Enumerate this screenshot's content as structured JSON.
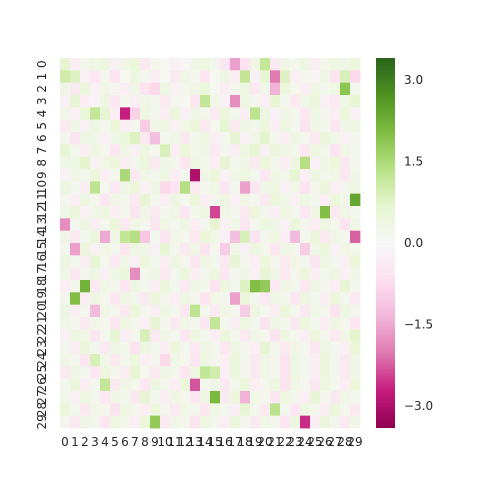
{
  "chart_data": {
    "type": "heatmap",
    "title": "",
    "xlabel": "",
    "ylabel": "",
    "colormap": "PiYG",
    "colormap_stops": [
      "#8e0152",
      "#c51b7d",
      "#de77ae",
      "#f1b6da",
      "#fde0ef",
      "#f7f7f7",
      "#e6f5d0",
      "#b8e186",
      "#7fbc41",
      "#4d9221",
      "#276419"
    ],
    "vmin": -3.4,
    "vmax": 3.4,
    "x_categories": [
      "0",
      "1",
      "2",
      "3",
      "4",
      "5",
      "6",
      "7",
      "8",
      "9",
      "10",
      "11",
      "12",
      "13",
      "14",
      "15",
      "16",
      "17",
      "18",
      "19",
      "20",
      "21",
      "22",
      "23",
      "24",
      "25",
      "26",
      "27",
      "28",
      "29"
    ],
    "y_categories": [
      "0",
      "1",
      "2",
      "3",
      "4",
      "5",
      "6",
      "7",
      "8",
      "9",
      "10",
      "11",
      "12",
      "13",
      "14",
      "15",
      "16",
      "17",
      "18",
      "19",
      "20",
      "21",
      "22",
      "23",
      "24",
      "25",
      "26",
      "27",
      "28",
      "29"
    ],
    "colorbar_ticks": [
      {
        "value": 3.0,
        "label": "3.0"
      },
      {
        "value": 1.5,
        "label": "1.5"
      },
      {
        "value": 0.0,
        "label": "0.0"
      },
      {
        "value": -1.5,
        "label": "−1.5"
      },
      {
        "value": -3.0,
        "label": "−3.0"
      }
    ],
    "values": [
      [
        0.6,
        -0.3,
        0.2,
        0.3,
        0.4,
        -0.2,
        0.3,
        0.5,
        -0.4,
        0.2,
        0.1,
        -0.2,
        -0.1,
        0.3,
        0.4,
        0.2,
        -0.5,
        -1.6,
        -0.6,
        0.3,
        1.2,
        -0.4,
        0.3,
        0.2,
        0.4,
        -0.3,
        0.2,
        0.4,
        0.3,
        0.5
      ],
      [
        1.0,
        0.8,
        -0.2,
        -0.5,
        0.2,
        -0.6,
        0.1,
        0.4,
        0.2,
        -0.3,
        0.1,
        -0.4,
        0.3,
        0.2,
        -0.5,
        0.1,
        0.4,
        -0.3,
        1.2,
        -0.2,
        0.6,
        -2.0,
        0.8,
        -0.3,
        0.2,
        -0.1,
        0.3,
        -0.6,
        0.9,
        -0.8
      ],
      [
        0.3,
        -0.4,
        0.5,
        -0.2,
        0.3,
        0.2,
        -0.3,
        0.3,
        -0.6,
        -0.8,
        0.4,
        -0.2,
        0.2,
        0.3,
        0.5,
        0.1,
        -0.3,
        0.2,
        0.4,
        -0.4,
        0.3,
        -1.4,
        0.5,
        0.2,
        -0.3,
        0.4,
        0.2,
        0.3,
        1.9,
        0.2
      ],
      [
        -0.2,
        0.6,
        -0.3,
        -0.1,
        0.4,
        -0.5,
        0.2,
        -0.3,
        0.3,
        0.2,
        -0.4,
        0.2,
        0.1,
        -0.5,
        1.2,
        0.3,
        -0.2,
        -1.8,
        0.4,
        0.2,
        -0.3,
        0.6,
        0.2,
        -0.4,
        0.3,
        0.5,
        -0.2,
        -0.4,
        0.3,
        0.6
      ],
      [
        0.3,
        -0.2,
        0.5,
        1.2,
        0.6,
        -0.3,
        -2.7,
        -0.9,
        0.4,
        0.2,
        -0.3,
        0.5,
        -0.2,
        0.3,
        0.2,
        -0.4,
        0.5,
        0.2,
        -0.3,
        1.3,
        0.4,
        -0.2,
        0.3,
        0.2,
        -0.5,
        0.4,
        0.2,
        -0.3,
        0.5,
        -0.2
      ],
      [
        -0.4,
        0.3,
        -0.2,
        0.4,
        0.2,
        0.5,
        -0.3,
        0.2,
        -1.0,
        0.3,
        0.4,
        -0.2,
        0.3,
        0.5,
        -0.4,
        0.2,
        0.6,
        -0.4,
        0.3,
        0.2,
        0.5,
        -0.3,
        0.4,
        0.2,
        -0.6,
        0.3,
        0.2,
        -0.5,
        0.3,
        0.4
      ],
      [
        0.2,
        -0.6,
        0.4,
        0.3,
        -0.2,
        0.3,
        0.5,
        0.8,
        -0.4,
        -1.2,
        0.2,
        0.3,
        -0.4,
        0.2,
        0.4,
        -0.3,
        0.2,
        0.6,
        -0.2,
        0.3,
        0.7,
        0.2,
        -0.3,
        0.4,
        0.2,
        -0.4,
        0.5,
        0.3,
        -0.2,
        0.2
      ],
      [
        0.6,
        0.2,
        -0.3,
        0.4,
        0.2,
        -0.5,
        0.3,
        -0.2,
        0.4,
        0.2,
        0.9,
        -0.3,
        0.5,
        0.2,
        0.3,
        -0.4,
        0.2,
        -0.3,
        0.4,
        0.6,
        -0.2,
        0.5,
        0.3,
        0.2,
        -0.5,
        0.4,
        0.2,
        -0.6,
        0.3,
        0.2
      ],
      [
        0.3,
        0.4,
        0.7,
        -0.2,
        0.3,
        0.5,
        -0.3,
        0.2,
        0.5,
        -0.4,
        0.3,
        0.2,
        -0.5,
        0.4,
        0.2,
        -0.3,
        0.6,
        0.2,
        0.3,
        -0.4,
        0.5,
        0.2,
        -0.3,
        0.4,
        1.4,
        -0.2,
        0.3,
        0.5,
        -0.4,
        0.2
      ],
      [
        -0.2,
        0.3,
        0.2,
        0.5,
        -0.3,
        0.2,
        1.5,
        -0.4,
        0.3,
        0.2,
        0.4,
        -0.3,
        0.2,
        -3.0,
        0.3,
        0.5,
        -0.2,
        0.3,
        0.4,
        0.2,
        -0.5,
        0.3,
        0.2,
        0.6,
        -0.3,
        0.4,
        0.2,
        0.3,
        -0.5,
        0.3
      ],
      [
        0.4,
        0.2,
        -0.3,
        1.3,
        0.2,
        -0.4,
        0.3,
        0.5,
        -0.2,
        0.3,
        -0.8,
        -0.6,
        1.4,
        -0.4,
        0.2,
        0.3,
        -0.5,
        0.2,
        -1.6,
        -0.5,
        0.3,
        0.4,
        -0.2,
        0.3,
        -0.6,
        0.2,
        0.5,
        -0.3,
        0.2,
        0.4
      ],
      [
        0.2,
        -0.3,
        0.4,
        0.2,
        -0.5,
        0.3,
        0.2,
        -0.4,
        0.6,
        0.2,
        -0.3,
        0.4,
        0.2,
        0.5,
        -0.3,
        0.2,
        0.4,
        -0.2,
        0.3,
        0.2,
        -0.4,
        0.5,
        0.3,
        -0.2,
        0.4,
        0.2,
        -0.3,
        0.5,
        0.2,
        2.4
      ],
      [
        0.3,
        0.5,
        -0.2,
        0.3,
        0.4,
        -0.3,
        0.2,
        -0.6,
        0.3,
        -0.4,
        0.2,
        0.3,
        -0.5,
        0.2,
        0.4,
        -2.4,
        0.3,
        0.2,
        -0.4,
        0.5,
        0.2,
        -0.3,
        0.4,
        0.2,
        -0.5,
        0.3,
        2.0,
        -0.4,
        0.3,
        0.2
      ],
      [
        -1.8,
        0.2,
        0.4,
        -0.3,
        0.2,
        0.5,
        -0.4,
        0.3,
        0.2,
        -0.5,
        0.3,
        0.2,
        0.4,
        -0.3,
        0.2,
        0.6,
        -0.2,
        0.3,
        -0.5,
        0.2,
        0.4,
        0.3,
        -0.2,
        0.5,
        0.2,
        -0.3,
        0.4,
        0.2,
        -0.6,
        0.3
      ],
      [
        0.3,
        -0.4,
        0.2,
        0.5,
        -1.5,
        0.3,
        1.2,
        1.4,
        -1.1,
        0.2,
        -0.6,
        0.3,
        0.2,
        -0.4,
        0.5,
        0.3,
        -0.2,
        -1.2,
        0.9,
        -0.6,
        0.2,
        0.4,
        -0.3,
        -1.3,
        0.2,
        0.5,
        -0.4,
        0.3,
        0.2,
        -2.2
      ],
      [
        0.2,
        -1.6,
        0.5,
        -0.2,
        0.3,
        0.2,
        -0.5,
        0.4,
        0.3,
        -0.2,
        0.6,
        0.2,
        -0.4,
        0.3,
        -0.6,
        0.2,
        -1.0,
        0.3,
        -0.2,
        0.4,
        0.2,
        -0.5,
        0.3,
        0.2,
        -1.0,
        0.3,
        0.5,
        -0.2,
        0.3,
        0.2
      ],
      [
        0.4,
        0.2,
        -0.3,
        0.6,
        0.2,
        -0.4,
        0.3,
        -0.2,
        0.5,
        0.2,
        -0.3,
        0.4,
        0.2,
        -0.5,
        0.3,
        0.2,
        -0.4,
        0.6,
        0.2,
        -0.3,
        0.5,
        0.2,
        -0.4,
        0.3,
        0.2,
        -0.6,
        0.4,
        0.2,
        -0.3,
        0.5
      ],
      [
        0.3,
        -0.5,
        0.2,
        0.4,
        -0.2,
        0.3,
        0.5,
        -1.8,
        0.2,
        0.3,
        -0.4,
        0.2,
        0.5,
        -0.3,
        0.2,
        0.4,
        -0.5,
        0.2,
        0.3,
        -0.2,
        0.6,
        0.3,
        -0.4,
        0.2,
        0.5,
        -0.3,
        0.2,
        0.4,
        -0.2,
        0.3
      ],
      [
        -0.3,
        0.2,
        2.2,
        -0.4,
        0.3,
        0.2,
        -0.5,
        0.4,
        0.2,
        -0.3,
        0.5,
        0.2,
        -0.4,
        0.3,
        0.2,
        -0.6,
        0.4,
        0.2,
        0.8,
        2.0,
        1.8,
        -0.4,
        0.3,
        0.2,
        -0.5,
        0.4,
        0.2,
        -0.3,
        0.6,
        0.2
      ],
      [
        0.2,
        2.0,
        -0.3,
        0.4,
        0.2,
        -0.5,
        0.3,
        0.2,
        -0.4,
        0.5,
        0.2,
        -0.3,
        0.4,
        0.2,
        -0.6,
        0.3,
        0.2,
        -1.6,
        0.5,
        0.2,
        -0.4,
        0.3,
        0.2,
        -0.5,
        0.4,
        0.2,
        -0.3,
        0.5,
        0.2,
        -0.4
      ],
      [
        0.4,
        -0.3,
        0.2,
        -1.3,
        0.3,
        0.2,
        -0.4,
        0.5,
        0.2,
        -0.3,
        0.4,
        0.2,
        -0.5,
        1.3,
        0.2,
        -0.4,
        0.3,
        0.2,
        -1.0,
        0.4,
        0.2,
        -0.3,
        0.5,
        0.2,
        -0.4,
        0.3,
        0.2,
        -0.6,
        0.4,
        0.2
      ],
      [
        0.3,
        0.2,
        -0.4,
        0.3,
        0.2,
        -0.5,
        0.4,
        0.2,
        -0.3,
        0.6,
        0.2,
        -0.4,
        0.3,
        0.2,
        -0.5,
        1.2,
        0.2,
        -0.3,
        0.4,
        0.2,
        -0.6,
        0.3,
        0.2,
        -0.4,
        0.5,
        0.2,
        -0.3,
        0.4,
        0.2,
        -0.5
      ],
      [
        -0.2,
        0.4,
        0.3,
        -0.5,
        0.2,
        0.6,
        -0.3,
        0.2,
        0.9,
        -0.4,
        0.3,
        0.2,
        -0.5,
        0.4,
        0.2,
        -0.3,
        0.5,
        0.2,
        -0.4,
        0.3,
        0.2,
        -0.6,
        0.4,
        0.2,
        -0.3,
        0.5,
        0.2,
        -0.4,
        0.3,
        0.7
      ],
      [
        0.2,
        -0.3,
        0.5,
        0.2,
        -0.4,
        0.3,
        0.2,
        -0.6,
        0.4,
        0.2,
        -0.3,
        0.5,
        0.2,
        -0.4,
        0.3,
        0.2,
        -0.5,
        0.4,
        0.2,
        -0.3,
        0.6,
        0.2,
        -0.4,
        0.3,
        0.2,
        -0.5,
        0.4,
        0.2,
        -0.3,
        0.5
      ],
      [
        0.3,
        0.2,
        -0.5,
        0.9,
        0.3,
        -0.4,
        0.2,
        0.5,
        -0.3,
        0.2,
        -0.8,
        0.3,
        0.2,
        -0.5,
        0.4,
        0.2,
        -0.3,
        0.5,
        0.2,
        -0.4,
        0.3,
        0.2,
        -0.6,
        0.4,
        0.2,
        -0.3,
        0.5,
        0.2,
        -0.4,
        0.3
      ],
      [
        -0.4,
        0.3,
        0.2,
        -0.5,
        0.4,
        0.2,
        -0.3,
        0.6,
        0.2,
        -0.4,
        0.3,
        0.2,
        -0.5,
        0.4,
        1.2,
        1.0,
        -0.3,
        0.5,
        0.2,
        -0.4,
        0.3,
        0.2,
        -0.6,
        0.4,
        0.2,
        -0.3,
        0.5,
        0.2,
        -0.4,
        0.3
      ],
      [
        0.2,
        0.5,
        -0.3,
        0.2,
        1.2,
        -0.4,
        0.3,
        0.2,
        -0.5,
        0.4,
        0.2,
        -0.3,
        0.5,
        -2.3,
        0.2,
        0.3,
        -0.4,
        0.2,
        0.5,
        -0.3,
        0.2,
        0.4,
        -0.6,
        0.3,
        0.2,
        -0.5,
        0.4,
        0.2,
        -0.3,
        0.5
      ],
      [
        0.3,
        -0.2,
        0.4,
        0.2,
        -0.5,
        0.3,
        0.2,
        -0.4,
        0.6,
        0.2,
        -0.3,
        0.4,
        0.2,
        -0.5,
        0.3,
        2.1,
        -0.4,
        0.5,
        -1.4,
        0.3,
        0.2,
        -0.5,
        0.4,
        0.2,
        -0.3,
        0.6,
        0.2,
        -0.4,
        0.3,
        0.2
      ],
      [
        0.5,
        0.2,
        -0.4,
        0.3,
        0.2,
        -0.6,
        0.4,
        0.2,
        -0.3,
        0.5,
        0.2,
        -0.4,
        0.3,
        0.2,
        -0.5,
        0.4,
        0.2,
        -0.3,
        0.6,
        0.2,
        -0.4,
        1.3,
        0.2,
        -0.5,
        0.4,
        0.2,
        -0.3,
        0.5,
        0.2,
        -0.4
      ],
      [
        0.2,
        -0.4,
        0.3,
        0.2,
        -0.5,
        0.4,
        0.2,
        -0.3,
        0.5,
        1.8,
        -0.4,
        0.3,
        0.2,
        -0.6,
        0.4,
        0.2,
        -0.3,
        0.5,
        0.2,
        -0.4,
        0.3,
        0.2,
        -0.5,
        0.4,
        -2.6,
        -0.3,
        0.5,
        0.2,
        -0.4,
        0.3
      ]
    ]
  }
}
